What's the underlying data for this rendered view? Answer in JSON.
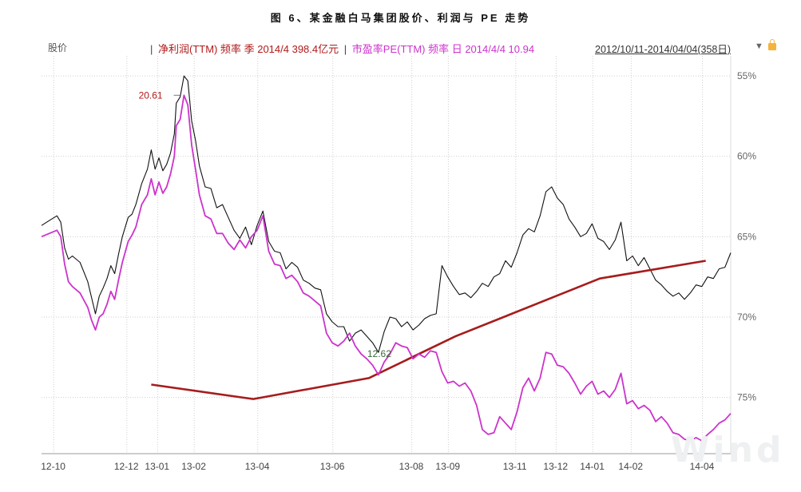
{
  "figure_title": "图 6、某金融白马集团股价、利润与 PE 走势",
  "header": {
    "price_label": "股价",
    "profit_legend": "净利润(TTM) 频率 季 2014/4 398.4亿元",
    "separator": "|",
    "pe_legend": "市盈率PE(TTM) 频率 日 2014/4/4 10.94",
    "date_range": "2012/10/11-2014/04/04(358日)",
    "dropdown_icon": "triangle-down-icon",
    "lock_icon": "lock-icon"
  },
  "watermark": "Wind",
  "colors": {
    "price": "#111111",
    "profit": "#a61c1c",
    "pe": "#cc33cc",
    "grid": "#cfcfcf"
  },
  "chart_data": {
    "type": "line",
    "x_range": [
      0,
      358
    ],
    "x_tick_labels": [
      "12-10",
      "12-12",
      "13-01",
      "13-02",
      "13-04",
      "13-06",
      "13-08",
      "13-09",
      "13-11",
      "13-12",
      "14-01",
      "14-02",
      "14-04"
    ],
    "x_tick_positions": [
      3,
      41,
      57,
      76,
      109,
      148,
      189,
      208,
      243,
      264,
      283,
      303,
      340
    ],
    "right_axis": {
      "tick_labels": [
        "55%",
        "60%",
        "65%",
        "70%",
        "75%"
      ],
      "tick_values": [
        -55,
        -60,
        -65,
        -70,
        -75
      ],
      "range": [
        -78.5,
        -54
      ]
    },
    "annotations": [
      {
        "text": "20.61",
        "x": 72,
        "series": "price"
      },
      {
        "text": "12.62",
        "x": 176,
        "series": "price"
      }
    ],
    "series": [
      {
        "name": "股价",
        "x": [
          0,
          4,
          8,
          10,
          12,
          14,
          16,
          20,
          24,
          26,
          28,
          30,
          32,
          34,
          36,
          38,
          40,
          42,
          45,
          47,
          49,
          52,
          55,
          57,
          59,
          61,
          63,
          65,
          67,
          69,
          70,
          72,
          74,
          76,
          78,
          80,
          82,
          85,
          88,
          91,
          94,
          97,
          100,
          103,
          106,
          109,
          112,
          115,
          118,
          121,
          124,
          127,
          130,
          133,
          136,
          139,
          142,
          145,
          148,
          151,
          154,
          157,
          160,
          163,
          166,
          169,
          172,
          175,
          178,
          181,
          184,
          187,
          190,
          193,
          196,
          199,
          202,
          205,
          208,
          211,
          214,
          217,
          220,
          223,
          226,
          229,
          232,
          235,
          238,
          241,
          244,
          247,
          250,
          253,
          256,
          259,
          262,
          265,
          268,
          271,
          274,
          277,
          280,
          283,
          286,
          289,
          292,
          295,
          298,
          301,
          304,
          307,
          310,
          313,
          316,
          319,
          322,
          325,
          328,
          331,
          334,
          337,
          340,
          343,
          346,
          349,
          352,
          355,
          358
        ],
        "values": [
          -64.3,
          -64.0,
          -63.7,
          -64.1,
          -65.7,
          -66.4,
          -66.2,
          -66.6,
          -67.8,
          -68.8,
          -69.8,
          -68.7,
          -68.2,
          -67.6,
          -66.8,
          -67.3,
          -66.1,
          -65.0,
          -63.8,
          -63.6,
          -63.0,
          -61.7,
          -60.8,
          -59.6,
          -60.8,
          -60.1,
          -60.9,
          -60.5,
          -59.8,
          -58.6,
          -56.7,
          -56.3,
          -55.0,
          -55.3,
          -57.8,
          -59.0,
          -60.6,
          -61.9,
          -62.0,
          -63.2,
          -63.0,
          -63.8,
          -64.6,
          -65.1,
          -64.4,
          -65.5,
          -64.3,
          -63.4,
          -65.3,
          -65.9,
          -66.0,
          -67.0,
          -66.6,
          -66.9,
          -67.7,
          -67.9,
          -68.2,
          -68.3,
          -69.8,
          -70.3,
          -70.6,
          -70.6,
          -71.5,
          -71.0,
          -70.8,
          -71.2,
          -71.6,
          -72.2,
          -70.9,
          -70.0,
          -70.1,
          -70.6,
          -70.3,
          -70.8,
          -70.5,
          -70.1,
          -69.9,
          -69.8,
          -66.8,
          -67.5,
          -68.1,
          -68.6,
          -68.5,
          -68.8,
          -68.4,
          -67.9,
          -68.1,
          -67.5,
          -67.3,
          -66.5,
          -66.9,
          -66.0,
          -64.9,
          -64.5,
          -64.7,
          -63.7,
          -62.2,
          -61.9,
          -62.6,
          -63.0,
          -63.9,
          -64.4,
          -65.0,
          -64.8,
          -64.2,
          -65.1,
          -65.3,
          -65.8,
          -65.2,
          -64.1,
          -66.5,
          -66.2,
          -66.8,
          -66.3,
          -67.0,
          -67.7,
          -68.0,
          -68.4,
          -68.7,
          -68.5,
          -68.9,
          -68.5,
          -68.0,
          -68.1,
          -67.5,
          -67.6,
          -67.0,
          -66.9,
          -66.0
        ]
      },
      {
        "name": "净利润(TTM)",
        "x": [
          57,
          110,
          170,
          215,
          290,
          345
        ],
        "values": [
          -74.2,
          -75.1,
          -73.8,
          -71.2,
          -67.6,
          -66.5
        ]
      },
      {
        "name": "市盈率PE(TTM)",
        "x": [
          0,
          4,
          8,
          10,
          12,
          14,
          16,
          20,
          24,
          26,
          28,
          30,
          32,
          34,
          36,
          38,
          40,
          42,
          45,
          47,
          49,
          52,
          55,
          57,
          59,
          61,
          63,
          65,
          67,
          69,
          70,
          72,
          74,
          76,
          78,
          80,
          82,
          85,
          88,
          91,
          94,
          97,
          100,
          103,
          106,
          109,
          112,
          115,
          118,
          121,
          124,
          127,
          130,
          133,
          136,
          139,
          142,
          145,
          148,
          151,
          154,
          157,
          160,
          163,
          166,
          169,
          172,
          175,
          178,
          181,
          184,
          187,
          190,
          193,
          196,
          199,
          202,
          205,
          208,
          211,
          214,
          217,
          220,
          223,
          226,
          229,
          232,
          235,
          238,
          241,
          244,
          247,
          250,
          253,
          256,
          259,
          262,
          265,
          268,
          271,
          274,
          277,
          280,
          283,
          286,
          289,
          292,
          295,
          298,
          301,
          304,
          307,
          310,
          313,
          316,
          319,
          322,
          325,
          328,
          331,
          334,
          337,
          340,
          343,
          346,
          349,
          352,
          355,
          358
        ],
        "values": [
          -65.0,
          -64.8,
          -64.6,
          -65.0,
          -66.7,
          -67.8,
          -68.1,
          -68.5,
          -69.4,
          -70.2,
          -70.8,
          -70.0,
          -69.8,
          -69.2,
          -68.4,
          -68.9,
          -67.7,
          -66.6,
          -65.3,
          -64.9,
          -64.4,
          -63.0,
          -62.4,
          -61.4,
          -62.4,
          -61.6,
          -62.3,
          -61.9,
          -61.1,
          -60.0,
          -58.1,
          -57.7,
          -56.2,
          -56.8,
          -59.3,
          -60.8,
          -62.4,
          -63.7,
          -63.9,
          -64.8,
          -64.8,
          -65.4,
          -65.8,
          -65.2,
          -65.7,
          -65.0,
          -64.6,
          -63.7,
          -65.9,
          -66.7,
          -66.8,
          -67.6,
          -67.4,
          -67.8,
          -68.5,
          -68.7,
          -69.0,
          -69.3,
          -71.0,
          -71.6,
          -71.8,
          -71.5,
          -71.0,
          -71.8,
          -72.3,
          -72.6,
          -73.0,
          -73.6,
          -72.8,
          -72.3,
          -71.6,
          -71.8,
          -71.9,
          -72.6,
          -72.3,
          -72.5,
          -72.1,
          -72.2,
          -73.4,
          -74.1,
          -74.0,
          -74.3,
          -74.1,
          -74.6,
          -75.5,
          -77.0,
          -77.3,
          -77.2,
          -76.2,
          -76.6,
          -77.0,
          -75.9,
          -74.4,
          -73.8,
          -74.6,
          -73.8,
          -72.2,
          -72.3,
          -73.0,
          -73.1,
          -73.5,
          -74.1,
          -74.8,
          -74.3,
          -74.0,
          -74.8,
          -74.6,
          -75.0,
          -74.5,
          -73.5,
          -75.4,
          -75.2,
          -75.7,
          -75.5,
          -75.8,
          -76.5,
          -76.2,
          -76.6,
          -77.2,
          -77.3,
          -77.6,
          -77.7,
          -77.5,
          -77.7,
          -77.3,
          -77.0,
          -76.6,
          -76.4,
          -76.0
        ]
      }
    ]
  }
}
